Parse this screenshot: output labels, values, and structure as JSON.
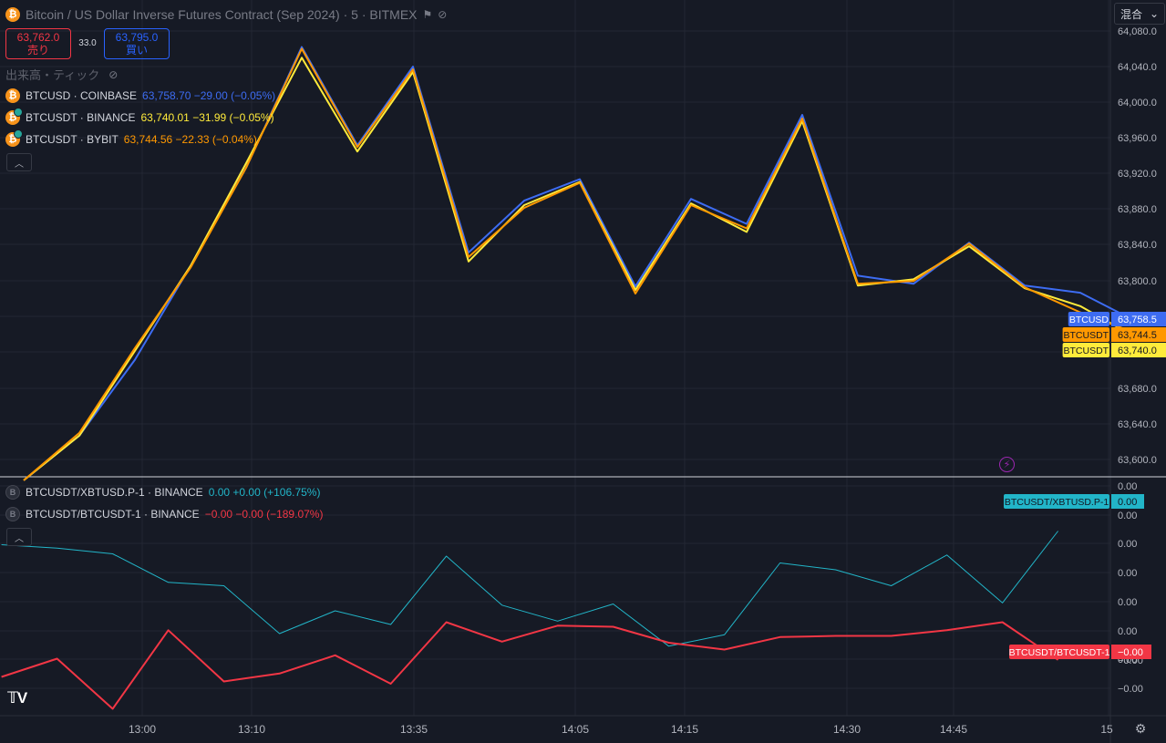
{
  "header": {
    "title": "Bitcoin / US Dollar Inverse Futures Contract (Sep 2024) · 5 · BITMEX",
    "sell_price": "63,762.0",
    "sell_label": "売り",
    "spread": "33.0",
    "buy_price": "63,795.0",
    "buy_label": "買い",
    "volume_label": "出来高・ティック",
    "mode_select": "混合"
  },
  "legend_main": [
    {
      "symbol": "BTCUSD · COINBASE",
      "value": "63,758.70 −29.00 (−0.05%)",
      "color": "#3d6cf2"
    },
    {
      "symbol": "BTCUSDT · BINANCE",
      "value": "63,740.01 −31.99 (−0.05%)",
      "color": "#ffeb3b"
    },
    {
      "symbol": "BTCUSDT · BYBIT",
      "value": "63,744.56 −22.33 (−0.04%)",
      "color": "#ff9800"
    }
  ],
  "legend_sub": [
    {
      "symbol": "BTCUSDT/XBTUSD.P-1 · BINANCE",
      "value": "0.00 +0.00 (+106.75%)",
      "color": "#22b5c8"
    },
    {
      "symbol": "BTCUSDT/BTCUSDT-1 · BINANCE",
      "value": "−0.00 −0.00 (−189.07%)",
      "color": "#f23645"
    }
  ],
  "price_axis_labels": [
    "64,080.0",
    "64,040.0",
    "64,000.0",
    "63,960.0",
    "63,920.0",
    "63,880.0",
    "63,840.0",
    "63,800.0",
    "63,680.0",
    "63,640.0",
    "63,600.0"
  ],
  "sub_axis_labels": [
    "0.00",
    "0.00",
    "0.00",
    "0.00",
    "0.00",
    "0.00",
    "0.00",
    "−0.00",
    "−0.00"
  ],
  "time_labels": [
    "13:00",
    "13:10",
    "13:35",
    "14:05",
    "14:15",
    "14:30",
    "14:45",
    "15"
  ],
  "price_tags": [
    {
      "name": "BTCUSD",
      "value": "63,758.5",
      "color": "#3d6cf2",
      "text_color": "#ffffff",
      "price": 63758.5
    },
    {
      "name": "BTCUSDT",
      "value": "63,744.5",
      "color": "#ff9800",
      "text_color": "#131722",
      "price": 63744.5
    },
    {
      "name": "BTCUSDT",
      "value": "63,740.0",
      "color": "#ffeb3b",
      "text_color": "#131722",
      "price": 63740.0
    }
  ],
  "sub_tags": [
    {
      "name": "BTCUSDT/XBTUSD.P-1",
      "value": "0.00",
      "color": "#22b5c8",
      "text_color": "#131722",
      "level": 0.566
    },
    {
      "name": "BTCUSDT/BTCUSDT-1",
      "value": "−0.00",
      "color": "#f23645",
      "text_color": "#ffffff",
      "level": -0.05
    }
  ],
  "chart_data": {
    "type": "line",
    "price_range": [
      63587,
      64087
    ],
    "series": [
      {
        "name": "BTCUSD · COINBASE",
        "color": "#3d6cf2",
        "points": [
          [
            0,
            63580
          ],
          [
            1,
            63630
          ],
          [
            2,
            63715
          ],
          [
            3,
            63820
          ],
          [
            4,
            63930
          ],
          [
            5,
            64065
          ],
          [
            6,
            63955
          ],
          [
            7,
            64043
          ],
          [
            8,
            63835
          ],
          [
            9,
            63893
          ],
          [
            10,
            63917
          ],
          [
            11,
            63797
          ],
          [
            12,
            63895
          ],
          [
            13,
            63867
          ],
          [
            14,
            63989
          ],
          [
            15,
            63809
          ],
          [
            16,
            63800
          ],
          [
            17,
            63846
          ],
          [
            18,
            63798
          ],
          [
            19,
            63790
          ],
          [
            20,
            63758
          ]
        ]
      },
      {
        "name": "BTCUSDT · BINANCE",
        "color": "#ffeb3b",
        "points": [
          [
            0,
            63580
          ],
          [
            1,
            63630
          ],
          [
            2,
            63725
          ],
          [
            3,
            63820
          ],
          [
            4,
            63935
          ],
          [
            5,
            64053
          ],
          [
            6,
            63948
          ],
          [
            7,
            64037
          ],
          [
            8,
            63825
          ],
          [
            9,
            63888
          ],
          [
            10,
            63914
          ],
          [
            11,
            63793
          ],
          [
            12,
            63890
          ],
          [
            13,
            63858
          ],
          [
            14,
            63982
          ],
          [
            15,
            63798
          ],
          [
            16,
            63805
          ],
          [
            17,
            63842
          ],
          [
            18,
            63795
          ],
          [
            19,
            63775
          ],
          [
            20,
            63740
          ]
        ]
      },
      {
        "name": "BTCUSDT · BYBIT",
        "color": "#ff9800",
        "points": [
          [
            0,
            63580
          ],
          [
            1,
            63633
          ],
          [
            2,
            63728
          ],
          [
            3,
            63818
          ],
          [
            4,
            63930
          ],
          [
            5,
            64063
          ],
          [
            6,
            63953
          ],
          [
            7,
            64040
          ],
          [
            8,
            63830
          ],
          [
            9,
            63885
          ],
          [
            10,
            63913
          ],
          [
            11,
            63789
          ],
          [
            12,
            63888
          ],
          [
            13,
            63862
          ],
          [
            14,
            63985
          ],
          [
            15,
            63800
          ],
          [
            16,
            63803
          ],
          [
            17,
            63845
          ],
          [
            18,
            63796
          ],
          [
            19,
            63768
          ],
          [
            20,
            63744.5
          ]
        ]
      }
    ],
    "sub_range": [
      -1,
      1
    ],
    "sub_series": [
      {
        "name": "BTCUSDT/XBTUSD.P-1 · BINANCE",
        "color": "#22b5c8",
        "points": [
          [
            0,
            0.46
          ],
          [
            1,
            0.43
          ],
          [
            2,
            0.38
          ],
          [
            3,
            0.13
          ],
          [
            4,
            0.1
          ],
          [
            5,
            -0.32
          ],
          [
            6,
            -0.12
          ],
          [
            7,
            -0.24
          ],
          [
            8,
            0.36
          ],
          [
            9,
            -0.07
          ],
          [
            10,
            -0.21
          ],
          [
            11,
            -0.06
          ],
          [
            12,
            -0.43
          ],
          [
            13,
            -0.33
          ],
          [
            14,
            0.3
          ],
          [
            15,
            0.24
          ],
          [
            16,
            0.1
          ],
          [
            17,
            0.37
          ],
          [
            18,
            -0.05
          ],
          [
            19,
            0.58
          ]
        ]
      },
      {
        "name": "BTCUSDT/BTCUSDT-1 · BINANCE",
        "color": "#f23645",
        "points": [
          [
            0,
            -0.7
          ],
          [
            1,
            -0.54
          ],
          [
            2,
            -0.98
          ],
          [
            3,
            -0.29
          ],
          [
            4,
            -0.74
          ],
          [
            5,
            -0.67
          ],
          [
            6,
            -0.51
          ],
          [
            7,
            -0.76
          ],
          [
            8,
            -0.22
          ],
          [
            9,
            -0.39
          ],
          [
            10,
            -0.25
          ],
          [
            11,
            -0.26
          ],
          [
            12,
            -0.4
          ],
          [
            13,
            -0.46
          ],
          [
            14,
            -0.35
          ],
          [
            15,
            -0.34
          ],
          [
            16,
            -0.34
          ],
          [
            17,
            -0.29
          ],
          [
            18,
            -0.22
          ],
          [
            19,
            -0.55
          ]
        ]
      }
    ]
  }
}
